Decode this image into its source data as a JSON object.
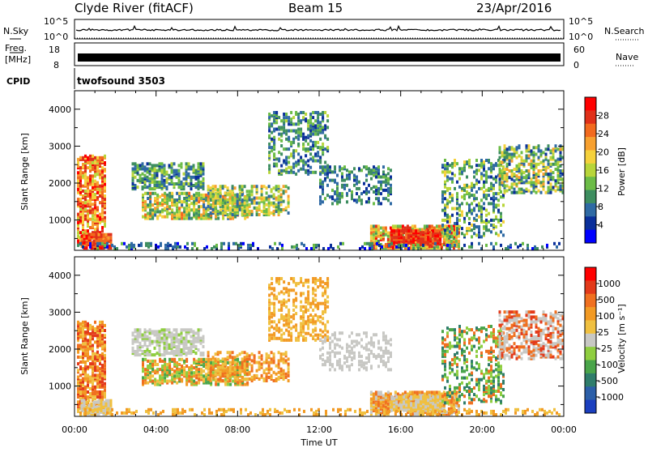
{
  "header": {
    "title": "Clyde River (fitACF)",
    "beam": "Beam 15",
    "date": "23/Apr/2016"
  },
  "nsky_panel": {
    "left_label": "N.Sky",
    "right_label": "N.Search",
    "tick_top": "10^5",
    "tick_bottom": "10^0"
  },
  "freq_panel": {
    "left_label_line1": "Freq.",
    "left_label_line2": "[MHz]",
    "left_tick_top": "18",
    "left_tick_bottom": "8",
    "right_label": "Nave",
    "right_tick_top": "60",
    "right_tick_bottom": "0"
  },
  "cpid": {
    "label": "CPID",
    "program": "twofsound 3503"
  },
  "chart_data": [
    {
      "type": "heatmap",
      "name": "power",
      "ylabel": "Slant Range [km]",
      "ylim": [
        180,
        4500
      ],
      "yticks": [
        "1000",
        "2000",
        "3000",
        "4000"
      ],
      "xticks": [
        "00:00",
        "04:00",
        "08:00",
        "12:00",
        "16:00",
        "20:00",
        "00:00"
      ],
      "colorbar_label": "Power [dB]",
      "colorbar_ticks": [
        "28",
        "24",
        "20",
        "16",
        "12",
        "8",
        "4"
      ],
      "colors": [
        "#0000ff",
        "#0a2f9a",
        "#2f6aa4",
        "#3e8e60",
        "#6cbc47",
        "#b8d53a",
        "#f5d13c",
        "#f7a02f",
        "#f26a1e",
        "#e03019",
        "#ff0000"
      ]
    },
    {
      "type": "heatmap",
      "name": "velocity",
      "ylabel": "Slant Range [km]",
      "xlabel": "Time UT",
      "ylim": [
        180,
        4500
      ],
      "yticks": [
        "1000",
        "2000",
        "3000",
        "4000"
      ],
      "xticks": [
        "00:00",
        "04:00",
        "08:00",
        "12:00",
        "16:00",
        "20:00",
        "00:00"
      ],
      "colorbar_label": "Velocity [m s⁻¹]",
      "colorbar_ticks": [
        "1000",
        "500",
        "100",
        "25",
        "-25",
        "-100",
        "-500",
        "-1000"
      ],
      "colors": [
        "#1b3fbf",
        "#2c5fa8",
        "#2f7d6b",
        "#4aa54a",
        "#8fce40",
        "#c8c8c4",
        "#f0c040",
        "#f29a24",
        "#f07020",
        "#e33a1a",
        "#ff0000"
      ]
    }
  ]
}
